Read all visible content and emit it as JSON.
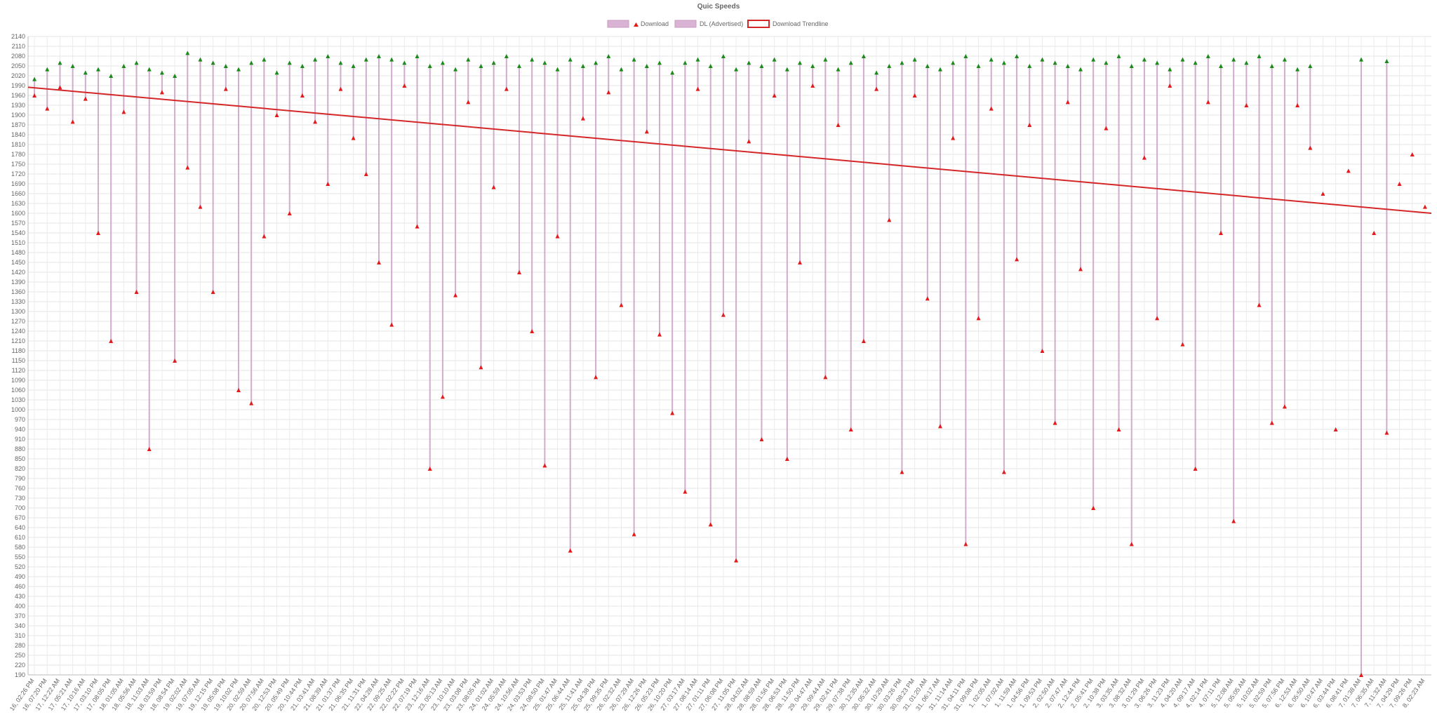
{
  "chart_data": {
    "type": "range",
    "title": "Quic Speeds",
    "categories": [
      "16, 02:26 PM",
      "16, 07:20 PM",
      "17, 12:22 AM",
      "17, 05:21 AM",
      "17, 10:16 AM",
      "17, 03:10 PM",
      "17, 08:05 PM",
      "18, 01:05 AM",
      "18, 05:56 AM",
      "18, 11:03 AM",
      "18, 03:59 PM",
      "18, 08:54 PM",
      "19, 02:02 AM",
      "19, 07:05 AM",
      "19, 12:15 PM",
      "19, 05:08 PM",
      "19, 10:02 PM",
      "20, 02:59 AM",
      "20, 07:56 AM",
      "20, 12:53 PM",
      "20, 05:49 PM",
      "20, 10:44 PM",
      "21, 03:41 AM",
      "21, 08:39 AM",
      "21, 01:37 PM",
      "21, 06:35 PM",
      "21, 11:31 PM",
      "22, 04:28 AM",
      "22, 09:25 AM",
      "22, 02:22 PM",
      "22, 07:19 PM",
      "23, 12:16 AM",
      "23, 05:13 AM",
      "23, 10:10 AM",
      "23, 03:08 PM",
      "23, 08:05 PM",
      "24, 01:02 AM",
      "24, 05:59 AM",
      "24, 10:56 AM",
      "24, 03:53 PM",
      "24, 08:50 PM",
      "25, 01:47 AM",
      "25, 06:44 AM",
      "25, 11:41 AM",
      "25, 04:38 PM",
      "25, 09:35 PM",
      "26, 02:32 AM",
      "26, 07:29 AM",
      "26, 12:26 PM",
      "26, 05:23 PM",
      "26, 10:20 PM",
      "27, 03:17 AM",
      "27, 08:14 AM",
      "27, 01:11 PM",
      "27, 06:08 PM",
      "27, 11:05 PM",
      "28, 04:02 AM",
      "28, 08:59 AM",
      "28, 01:56 PM",
      "28, 06:53 PM",
      "28, 11:50 PM",
      "29, 04:47 AM",
      "29, 09:44 AM",
      "29, 02:41 PM",
      "29, 07:38 PM",
      "30, 12:35 AM",
      "30, 05:32 AM",
      "30, 10:29 AM",
      "30, 03:26 PM",
      "30, 08:23 PM",
      "31, 01:20 AM",
      "31, 06:17 AM",
      "31, 11:14 AM",
      "31, 04:11 PM",
      "31, 09:08 PM",
      "1, 02:05 AM",
      "1, 07:02 AM",
      "1, 11:59 AM",
      "1, 04:56 PM",
      "1, 09:53 PM",
      "2, 02:50 AM",
      "2, 07:47 AM",
      "2, 12:44 PM",
      "2, 05:41 PM",
      "2, 10:38 PM",
      "3, 03:35 AM",
      "3, 08:32 AM",
      "3, 01:29 PM",
      "3, 06:26 PM",
      "3, 11:23 PM",
      "4, 04:20 AM",
      "4, 09:17 AM",
      "4, 02:14 PM",
      "4, 07:11 PM",
      "5, 12:08 AM",
      "5, 05:05 AM",
      "5, 10:02 AM",
      "5, 02:59 PM",
      "5, 07:56 PM",
      "6, 12:53 AM",
      "6, 05:50 AM",
      "6, 10:47 AM",
      "6, 03:44 PM",
      "6, 08:41 PM",
      "7, 01:38 AM",
      "7, 06:35 AM",
      "7, 11:32 AM",
      "7, 04:29 PM",
      "7, 09:26 PM",
      "8, 02:23 AM"
    ],
    "series": [
      {
        "name": "Download",
        "color": "#e31a1c",
        "values": [
          1960,
          1920,
          1985,
          1880,
          1950,
          1540,
          1210,
          1910,
          1360,
          880,
          1970,
          1150,
          1740,
          1620,
          1360,
          1980,
          1060,
          1020,
          1530,
          1900,
          1600,
          1960,
          1880,
          1690,
          1980,
          1830,
          1720,
          1450,
          1260,
          1990,
          1560,
          820,
          1040,
          1350,
          1940,
          1130,
          1680,
          1980,
          1420,
          1240,
          830,
          1530,
          570,
          1890,
          1100,
          1970,
          1320,
          620,
          1850,
          1230,
          990,
          750,
          1980,
          650,
          1290,
          540,
          1820,
          910,
          1960,
          850,
          1450,
          1990,
          1100,
          1870,
          940,
          1210,
          1980,
          1580,
          810,
          1960,
          1340,
          950,
          1830,
          590,
          1280,
          1920,
          810,
          1460,
          1870,
          1180,
          960,
          1940,
          1430,
          700,
          1860,
          940,
          590,
          1770,
          1280,
          1990,
          1200,
          820,
          1940,
          1540,
          660,
          1930,
          1320,
          960,
          1010,
          1930,
          1800,
          1660,
          940,
          1730,
          190,
          1540,
          930,
          1690,
          1780,
          1620
        ]
      },
      {
        "name": "DL (Advertised)",
        "color": "#1a8a1a",
        "values": [
          2010,
          2040,
          2060,
          2050,
          2030,
          2040,
          2020,
          2050,
          2060,
          2040,
          2030,
          2020,
          2090,
          2070,
          2060,
          2050,
          2040,
          2060,
          2070,
          2030,
          2060,
          2050,
          2070,
          2080,
          2060,
          2050,
          2070,
          2080,
          2070,
          2060,
          2080,
          2050,
          2060,
          2040,
          2070,
          2050,
          2060,
          2080,
          2050,
          2070,
          2060,
          2040,
          2070,
          2050,
          2060,
          2080,
          2040,
          2070,
          2050,
          2060,
          2030,
          2060,
          2070,
          2050,
          2080,
          2040,
          2060,
          2050,
          2070,
          2040,
          2060,
          2050,
          2070,
          2040,
          2060,
          2080,
          2030,
          2050,
          2060,
          2070,
          2050,
          2040,
          2060,
          2080,
          2050,
          2070,
          2060,
          2080,
          2050,
          2070,
          2060,
          2050,
          2040,
          2070,
          2060,
          2080,
          2050,
          2070,
          2060,
          2040,
          2070,
          2060,
          2080,
          2050,
          2070,
          2060,
          2080,
          2050,
          2070,
          2040,
          2050,
          null,
          null,
          null,
          2070,
          null,
          2065,
          null,
          null,
          null
        ]
      }
    ],
    "trendline": {
      "name": "Download Trendline",
      "color": "#d62728",
      "start": 1985,
      "end": 1600
    },
    "range_color": "#c99bc2",
    "ylim": [
      190,
      2140
    ],
    "yticks": [
      190,
      220,
      250,
      280,
      310,
      340,
      370,
      400,
      430,
      460,
      490,
      520,
      550,
      580,
      610,
      640,
      670,
      700,
      730,
      760,
      790,
      820,
      850,
      880,
      910,
      940,
      970,
      1000,
      1030,
      1060,
      1090,
      1120,
      1150,
      1180,
      1210,
      1240,
      1270,
      1300,
      1330,
      1360,
      1390,
      1420,
      1450,
      1480,
      1510,
      1540,
      1570,
      1600,
      1630,
      1660,
      1690,
      1720,
      1750,
      1780,
      1810,
      1840,
      1870,
      1900,
      1930,
      1960,
      1990,
      2020,
      2050,
      2080,
      2110,
      2140
    ],
    "grid": true
  }
}
